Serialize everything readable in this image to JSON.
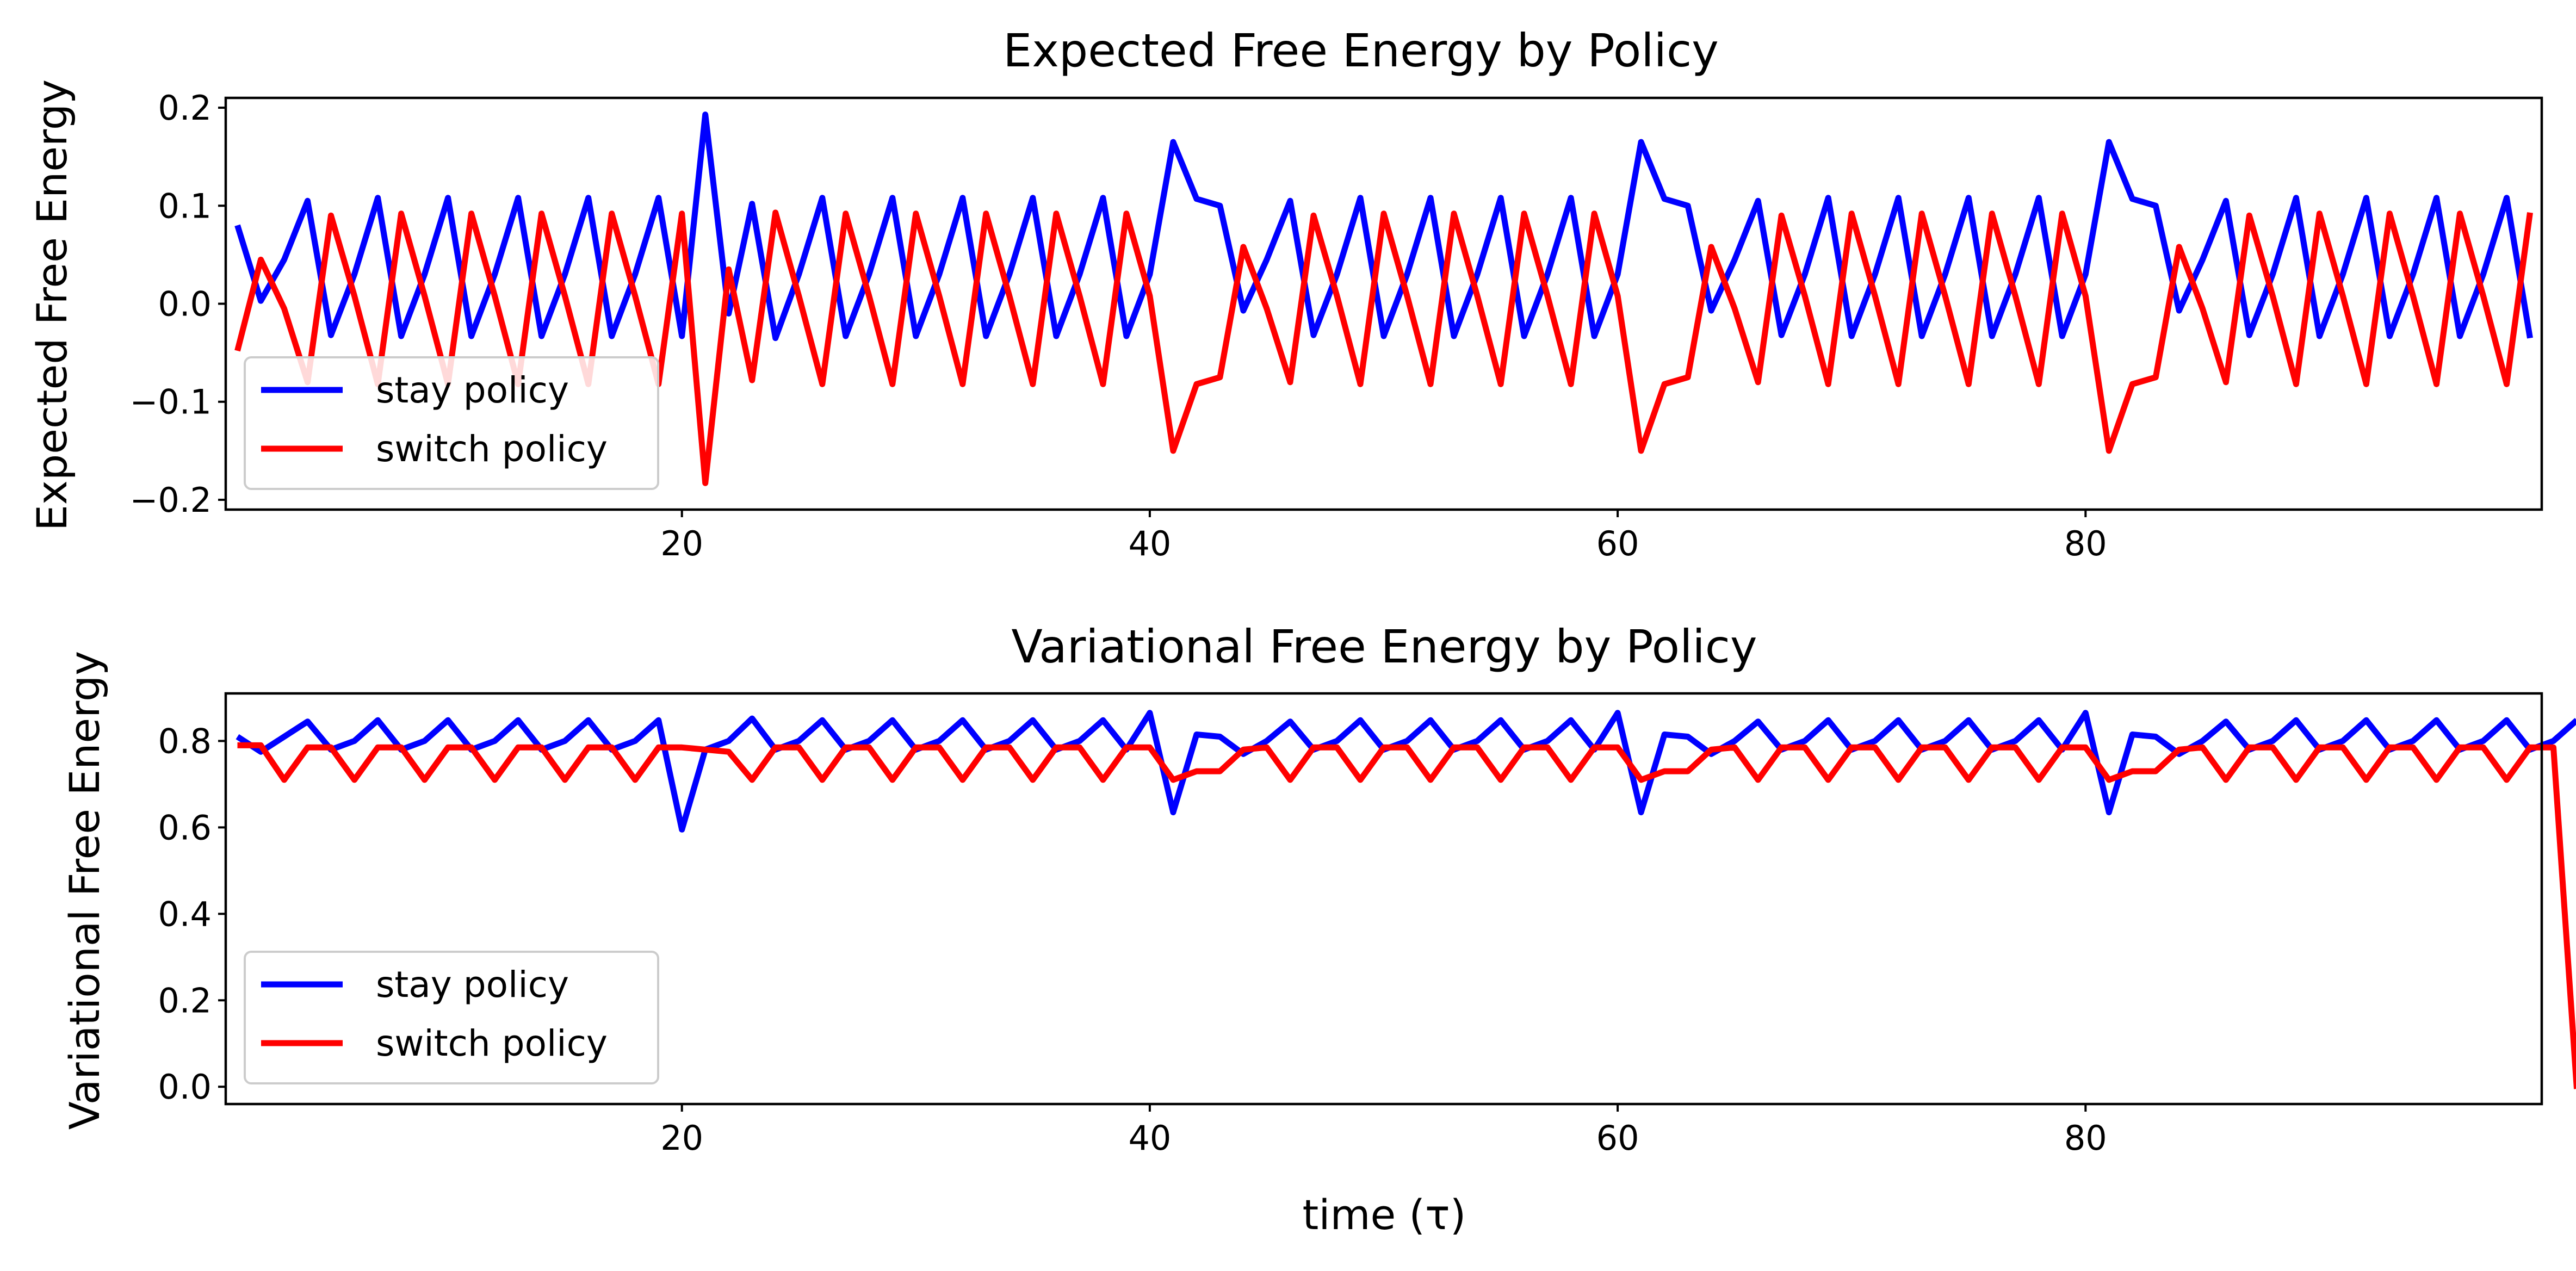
{
  "chart_data": [
    {
      "type": "line",
      "title": "Expected Free Energy by Policy",
      "xlabel": "",
      "ylabel": "Expected Free Energy",
      "xlim": [
        0.5,
        99.5
      ],
      "ylim": [
        -0.21,
        0.21
      ],
      "xticks": [
        20,
        40,
        60,
        80
      ],
      "yticks": [
        -0.2,
        -0.1,
        0.0,
        0.1,
        0.2
      ],
      "ytick_labels": [
        "−0.2",
        "−0.1",
        "0.0",
        "0.1",
        "0.2"
      ],
      "legend_position": "lower-left",
      "grid": false,
      "x_start": 1,
      "series": [
        {
          "name": "stay policy",
          "color": "#0000ff",
          "values": [
            0.08,
            0.003,
            0.045,
            0.105,
            -0.032,
            0.03,
            0.108,
            -0.033,
            0.03,
            0.108,
            -0.033,
            0.03,
            0.108,
            -0.033,
            0.03,
            0.108,
            -0.033,
            0.03,
            0.108,
            -0.033,
            0.193,
            -0.01,
            0.102,
            -0.035,
            0.03,
            0.108,
            -0.033,
            0.03,
            0.108,
            -0.033,
            0.03,
            0.108,
            -0.033,
            0.03,
            0.108,
            -0.033,
            0.03,
            0.108,
            -0.033,
            0.03,
            0.165,
            0.107,
            0.1,
            -0.007,
            0.045,
            0.105,
            -0.032,
            0.03,
            0.108,
            -0.033,
            0.03,
            0.108,
            -0.033,
            0.03,
            0.108,
            -0.033,
            0.03,
            0.108,
            -0.033,
            0.03,
            0.165,
            0.107,
            0.1,
            -0.007,
            0.045,
            0.105,
            -0.032,
            0.03,
            0.108,
            -0.033,
            0.03,
            0.108,
            -0.033,
            0.03,
            0.108,
            -0.033,
            0.03,
            0.108,
            -0.033,
            0.03,
            0.165,
            0.107,
            0.1,
            -0.007,
            0.045,
            0.105,
            -0.032,
            0.03,
            0.108,
            -0.033,
            0.03,
            0.108,
            -0.033,
            0.03,
            0.108,
            -0.033,
            0.03,
            0.108,
            -0.035
          ]
        },
        {
          "name": "switch policy",
          "color": "#ff0000",
          "values": [
            -0.048,
            0.045,
            -0.005,
            -0.08,
            0.09,
            0.008,
            -0.082,
            0.092,
            0.008,
            -0.082,
            0.092,
            0.008,
            -0.082,
            0.092,
            0.008,
            -0.082,
            0.092,
            0.008,
            -0.082,
            0.092,
            -0.183,
            0.035,
            -0.078,
            0.093,
            0.008,
            -0.082,
            0.092,
            0.008,
            -0.082,
            0.092,
            0.008,
            -0.082,
            0.092,
            0.008,
            -0.082,
            0.092,
            0.008,
            -0.082,
            0.092,
            0.008,
            -0.15,
            -0.082,
            -0.075,
            0.058,
            -0.005,
            -0.08,
            0.09,
            0.008,
            -0.082,
            0.092,
            0.008,
            -0.082,
            0.092,
            0.008,
            -0.082,
            0.092,
            0.008,
            -0.082,
            0.092,
            0.008,
            -0.15,
            -0.082,
            -0.075,
            0.058,
            -0.005,
            -0.08,
            0.09,
            0.008,
            -0.082,
            0.092,
            0.008,
            -0.082,
            0.092,
            0.008,
            -0.082,
            0.092,
            0.008,
            -0.082,
            0.092,
            0.008,
            -0.15,
            -0.082,
            -0.075,
            0.058,
            -0.005,
            -0.08,
            0.09,
            0.008,
            -0.082,
            0.092,
            0.008,
            -0.082,
            0.092,
            0.008,
            -0.082,
            0.092,
            0.008,
            -0.082,
            0.093
          ]
        }
      ]
    },
    {
      "type": "line",
      "title": "Variational Free Energy by Policy",
      "xlabel": "time (τ)",
      "ylabel": "Variational Free Energy",
      "xlim": [
        0.5,
        99.5
      ],
      "ylim": [
        -0.04,
        0.91
      ],
      "xticks": [
        20,
        40,
        60,
        80
      ],
      "yticks": [
        0.0,
        0.2,
        0.4,
        0.6,
        0.8
      ],
      "ytick_labels": [
        "0.0",
        "0.2",
        "0.4",
        "0.6",
        "0.8"
      ],
      "legend_position": "lower-left",
      "grid": false,
      "x_start": 1,
      "series": [
        {
          "name": "stay policy",
          "color": "#0000ff",
          "values": [
            0.81,
            0.775,
            0.81,
            0.845,
            0.78,
            0.8,
            0.848,
            0.78,
            0.8,
            0.848,
            0.78,
            0.8,
            0.848,
            0.78,
            0.8,
            0.848,
            0.78,
            0.8,
            0.848,
            0.595,
            0.78,
            0.8,
            0.852,
            0.78,
            0.8,
            0.848,
            0.78,
            0.8,
            0.848,
            0.78,
            0.8,
            0.848,
            0.78,
            0.8,
            0.848,
            0.78,
            0.8,
            0.848,
            0.78,
            0.865,
            0.635,
            0.815,
            0.81,
            0.77,
            0.8,
            0.845,
            0.78,
            0.8,
            0.848,
            0.78,
            0.8,
            0.848,
            0.78,
            0.8,
            0.848,
            0.78,
            0.8,
            0.848,
            0.78,
            0.865,
            0.635,
            0.815,
            0.81,
            0.77,
            0.8,
            0.845,
            0.78,
            0.8,
            0.848,
            0.78,
            0.8,
            0.848,
            0.78,
            0.8,
            0.848,
            0.78,
            0.8,
            0.848,
            0.78,
            0.865,
            0.635,
            0.815,
            0.81,
            0.77,
            0.8,
            0.845,
            0.78,
            0.8,
            0.848,
            0.78,
            0.8,
            0.848,
            0.78,
            0.8,
            0.848,
            0.78,
            0.8,
            0.848,
            0.78,
            0.8,
            0.848
          ]
        },
        {
          "name": "switch policy",
          "color": "#ff0000",
          "values": [
            0.79,
            0.79,
            0.71,
            0.785,
            0.785,
            0.71,
            0.785,
            0.785,
            0.71,
            0.785,
            0.785,
            0.71,
            0.785,
            0.785,
            0.71,
            0.785,
            0.785,
            0.71,
            0.785,
            0.785,
            0.78,
            0.775,
            0.71,
            0.785,
            0.785,
            0.71,
            0.785,
            0.785,
            0.71,
            0.785,
            0.785,
            0.71,
            0.785,
            0.785,
            0.71,
            0.785,
            0.785,
            0.71,
            0.785,
            0.785,
            0.71,
            0.73,
            0.73,
            0.78,
            0.785,
            0.71,
            0.785,
            0.785,
            0.71,
            0.785,
            0.785,
            0.71,
            0.785,
            0.785,
            0.71,
            0.785,
            0.785,
            0.71,
            0.785,
            0.785,
            0.71,
            0.73,
            0.73,
            0.78,
            0.785,
            0.71,
            0.785,
            0.785,
            0.71,
            0.785,
            0.785,
            0.71,
            0.785,
            0.785,
            0.71,
            0.785,
            0.785,
            0.71,
            0.785,
            0.785,
            0.71,
            0.73,
            0.73,
            0.78,
            0.785,
            0.71,
            0.785,
            0.785,
            0.71,
            0.785,
            0.785,
            0.71,
            0.785,
            0.785,
            0.71,
            0.785,
            0.785,
            0.71,
            0.785,
            0.785,
            -0.005
          ]
        }
      ]
    }
  ]
}
